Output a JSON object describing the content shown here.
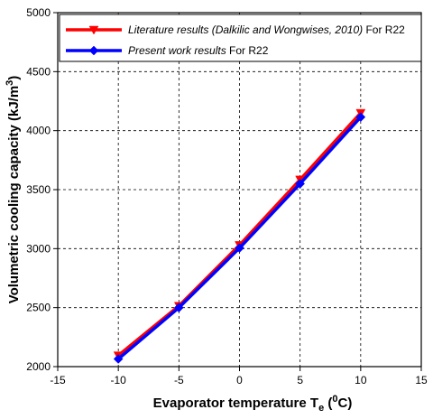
{
  "chart_data": {
    "type": "line",
    "xlabel_main": "Evaporator temperature T",
    "xlabel_sub": "e",
    "xlabel_open": " (",
    "xlabel_sup": "0",
    "xlabel_close": "C)",
    "ylabel_main": "Volumetric cooling capacity (kJ/m",
    "ylabel_sup": "3",
    "ylabel_close": ")",
    "xlim": [
      -15,
      15
    ],
    "ylim": [
      2000,
      5000
    ],
    "xticks": [
      -15,
      -10,
      -5,
      0,
      5,
      10,
      15
    ],
    "yticks": [
      2000,
      2500,
      3000,
      3500,
      4000,
      4500,
      5000
    ],
    "grid": true,
    "grid_style": "dashed",
    "legend_position": "top",
    "series": [
      {
        "name_italic": "Literature results (Dalkilic and Wongwises, 2010)",
        "name_rest": " For R22",
        "color": "#ff0000",
        "marker": "triangle-down",
        "x": [
          -10,
          -5,
          0,
          5,
          10
        ],
        "y": [
          2095,
          2515,
          3030,
          3585,
          4150
        ]
      },
      {
        "name_italic": "Present work results",
        "name_rest": " For R22",
        "color": "#0000ff",
        "marker": "diamond",
        "x": [
          -10,
          -5,
          0,
          5,
          10
        ],
        "y": [
          2065,
          2500,
          3005,
          3550,
          4115
        ]
      }
    ]
  }
}
